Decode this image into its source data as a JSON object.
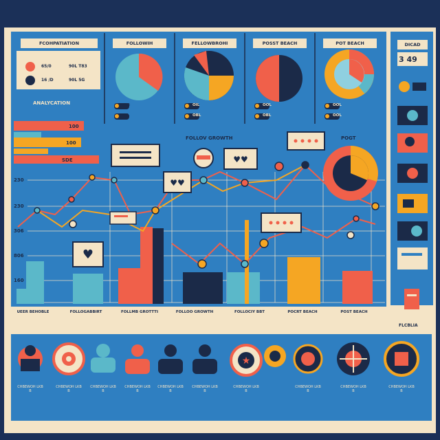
{
  "headers": {
    "h1": "FCOHPATIATION",
    "h2": "FOLLOWIH",
    "h3": "FELLOWBROHI",
    "h4": "POSST BEACH",
    "h5": "POT BEACH",
    "side": "DICAD"
  },
  "side_value": "3 49",
  "legend": {
    "row1_pct": "65/0",
    "row1_val": "90L T83",
    "row2_pct": "16 /D",
    "row2_val": "90L 5G"
  },
  "section_title": "ANALYCATION",
  "hbars": [
    {
      "value": "100",
      "label": "100"
    },
    {
      "value": "100",
      "label": "100"
    },
    {
      "value": "SDE",
      "label": "SDE"
    }
  ],
  "pie_legend": [
    {
      "a": "OIB",
      "b": "OIL"
    },
    {
      "a": "OIL",
      "b": "OBL"
    },
    {
      "a": "OOL",
      "b": "OBL"
    },
    {
      "a": "OOL",
      "b": "OOL"
    }
  ],
  "chart_titles": {
    "growth": "FOLLOV GROWTH",
    "post": "POGT"
  },
  "yaxis": [
    "230",
    "230",
    "306",
    "806",
    "160"
  ],
  "bottom_labels": [
    "UEER BEHOBLE",
    "FOLLOGABBIRT",
    "FOLLMB GROTTTI",
    "FOLLOO GROWTH",
    "FOLLOCIY BBT",
    "POCRT BEACH",
    "POST BEACH"
  ],
  "side_footer": "FLCBLIA",
  "people_captions": [
    "CHBEWOH LKB B",
    "CHBEWOH LKB B",
    "CHBEWOH LKB B",
    "CHBEWOH LKB B",
    "CHBEWOH LKB B",
    "CHBEWOH LKB B",
    "CHBEWOH LKB B",
    "CHBEWOH LKB B",
    "CHBEWOH LKB B",
    "CHBEWOH LKB B"
  ],
  "colors": {
    "navy": "#1b2a48",
    "blue": "#2f7fc1",
    "cream": "#f4e4c6",
    "coral": "#f0604a",
    "orange": "#f5a623",
    "teal": "#5bb8c9",
    "light_blue": "#8fd0e0"
  }
}
